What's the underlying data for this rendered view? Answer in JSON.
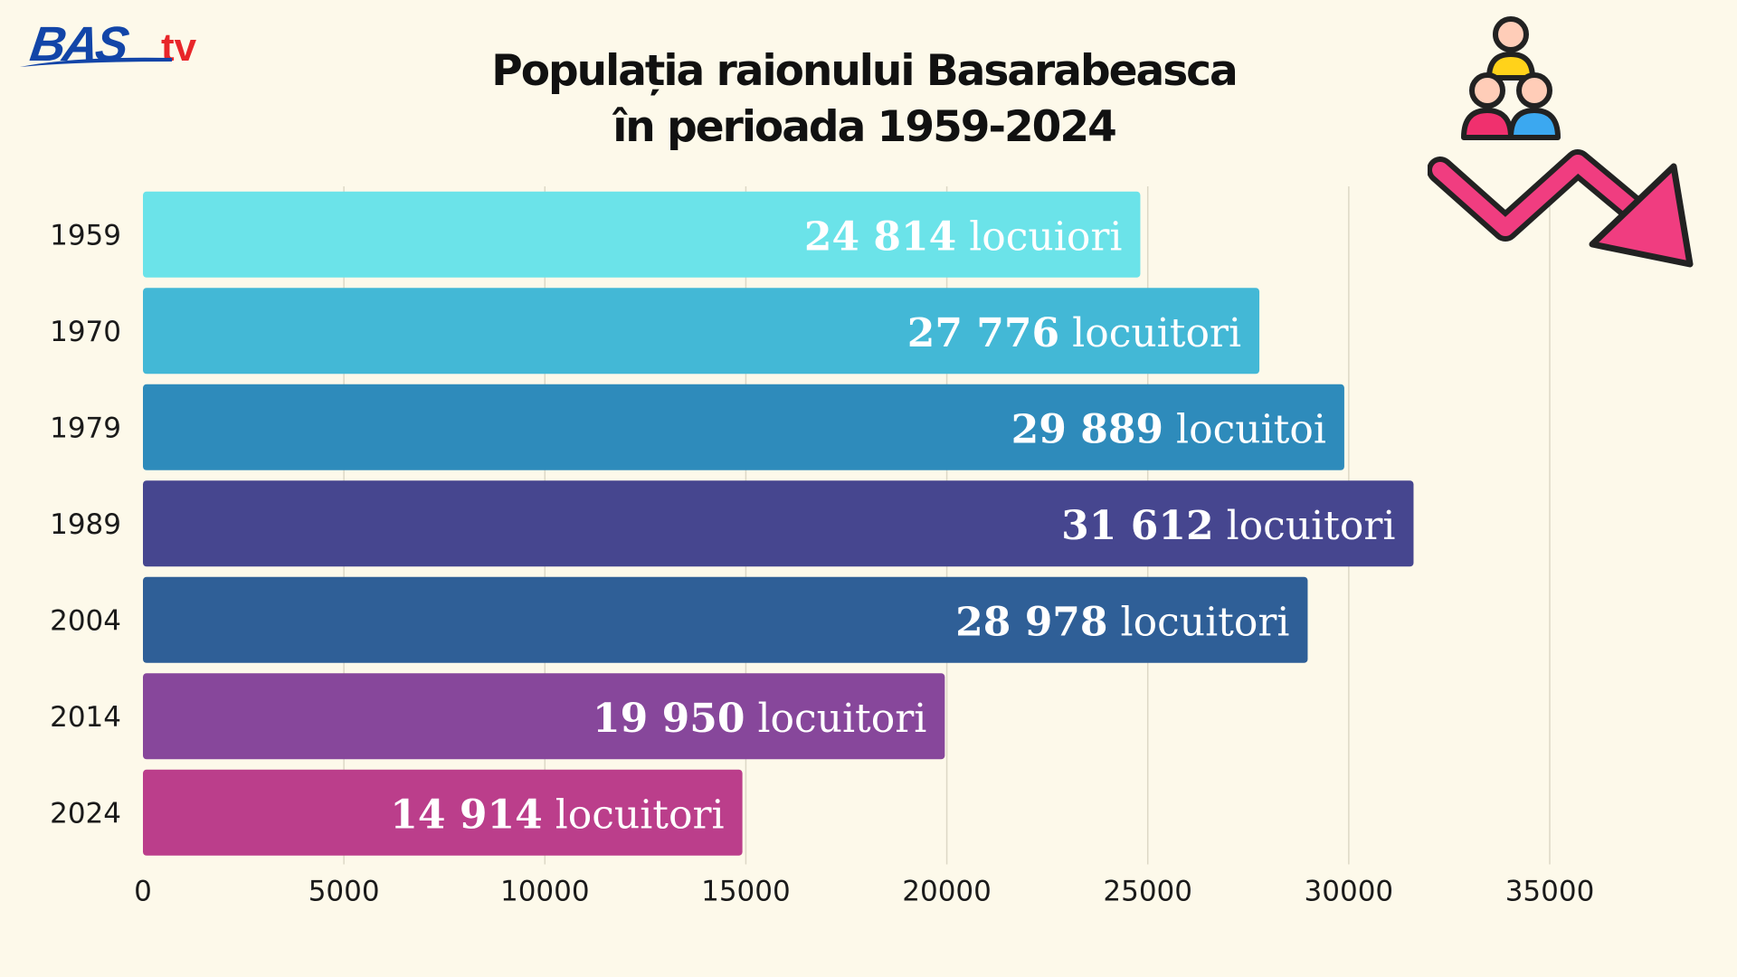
{
  "logo": {
    "main": "BAS",
    "suffix": "tv"
  },
  "chart_data": {
    "type": "bar",
    "orientation": "horizontal",
    "title_line1": "Populația raionului Basarabeasca",
    "title_line2": "în perioada 1959-2024",
    "categories": [
      "1959",
      "1970",
      "1979",
      "1989",
      "2004",
      "2014",
      "2024"
    ],
    "values": [
      24814,
      27776,
      29889,
      31612,
      28978,
      19950,
      14914
    ],
    "value_numbers": [
      "24 814",
      "27 776",
      "29 889",
      "31 612",
      "28 978",
      "19 950",
      "14 914"
    ],
    "value_units": [
      "locuiori",
      "locuitori",
      "locuitoi",
      "locuitori",
      "locuitori",
      "locuitori",
      "locuitori"
    ],
    "bar_colors": [
      "#6be3e9",
      "#43b8d6",
      "#2e8bbb",
      "#46468f",
      "#2f5f97",
      "#87479b",
      "#bb3e8b"
    ],
    "xlim": [
      0,
      35000
    ],
    "xticks": [
      0,
      5000,
      10000,
      15000,
      20000,
      25000,
      30000,
      35000
    ],
    "grid": true,
    "xlabel": "",
    "ylabel": ""
  },
  "icons": {
    "people": "people-group-icon",
    "trend": "downward-trend-arrow-icon"
  }
}
